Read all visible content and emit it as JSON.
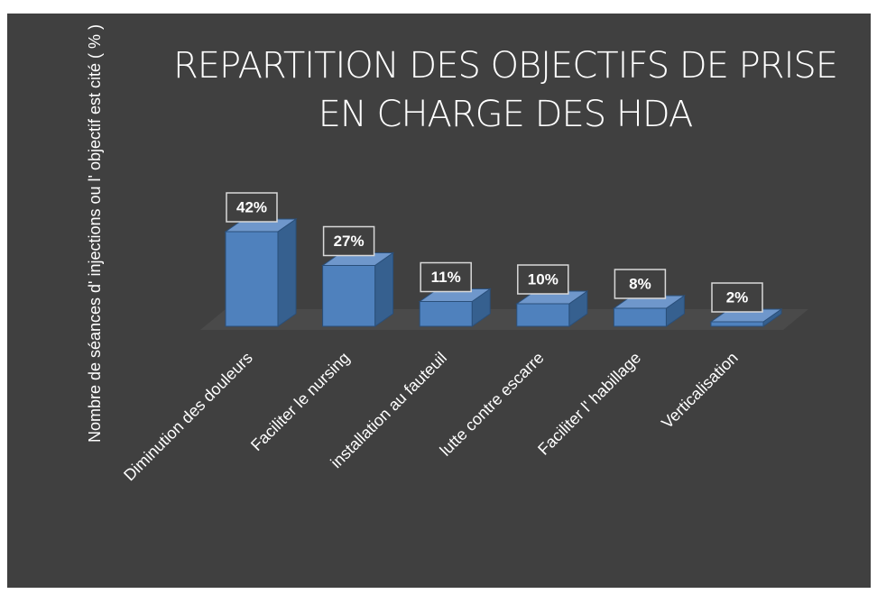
{
  "chart_data": {
    "type": "bar3d",
    "title": "REPARTITION DES OBJECTIFS DE PRISE EN CHARGE DES HDA",
    "y_label": "Nombre de séances d' injections ou l' objectif est cité ( % )",
    "categories": [
      "Diminution des douleurs",
      "Faciliter le nursing",
      "installation au fauteuil",
      "lutte contre escarre",
      "Faciliter l' habillage",
      "Verticalisation"
    ],
    "values": [
      42,
      27,
      11,
      10,
      8,
      2
    ],
    "value_labels": [
      "42%",
      "27%",
      "11%",
      "10%",
      "8%",
      "2%"
    ],
    "color": "#4f81bd"
  }
}
